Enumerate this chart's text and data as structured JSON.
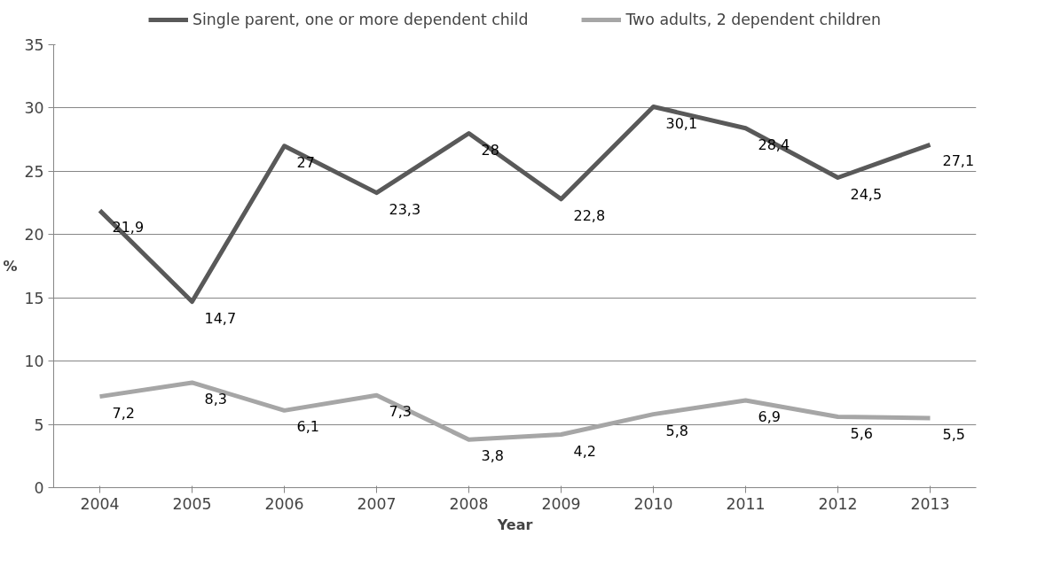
{
  "chart_data": {
    "type": "line",
    "xlabel": "Year",
    "ylabel": "%",
    "categories": [
      "2004",
      "2005",
      "2006",
      "2007",
      "2008",
      "2009",
      "2010",
      "2011",
      "2012",
      "2013"
    ],
    "series": [
      {
        "name": "Single parent, one or more dependent child",
        "color": "#595959",
        "values": [
          21.9,
          14.7,
          27,
          23.3,
          28,
          22.8,
          30.1,
          28.4,
          24.5,
          27.1
        ],
        "value_labels": [
          "21,9",
          "14,7",
          "27",
          "23,3",
          "28",
          "22,8",
          "30,1",
          "28,4",
          "24,5",
          "27,1"
        ]
      },
      {
        "name": "Two adults, 2 dependent children",
        "color": "#a6a6a6",
        "values": [
          7.2,
          8.3,
          6.1,
          7.3,
          3.8,
          4.2,
          5.8,
          6.9,
          5.6,
          5.5
        ],
        "value_labels": [
          "7,2",
          "8,3",
          "6,1",
          "7,3",
          "3,8",
          "4,2",
          "5,8",
          "6,9",
          "5,6",
          "5,5"
        ]
      }
    ],
    "ylim": [
      0,
      35
    ],
    "yticks": [
      0,
      5,
      10,
      15,
      20,
      25,
      30,
      35
    ],
    "grid": "y",
    "legend": "top",
    "marker": "none",
    "line_style": "solid"
  }
}
